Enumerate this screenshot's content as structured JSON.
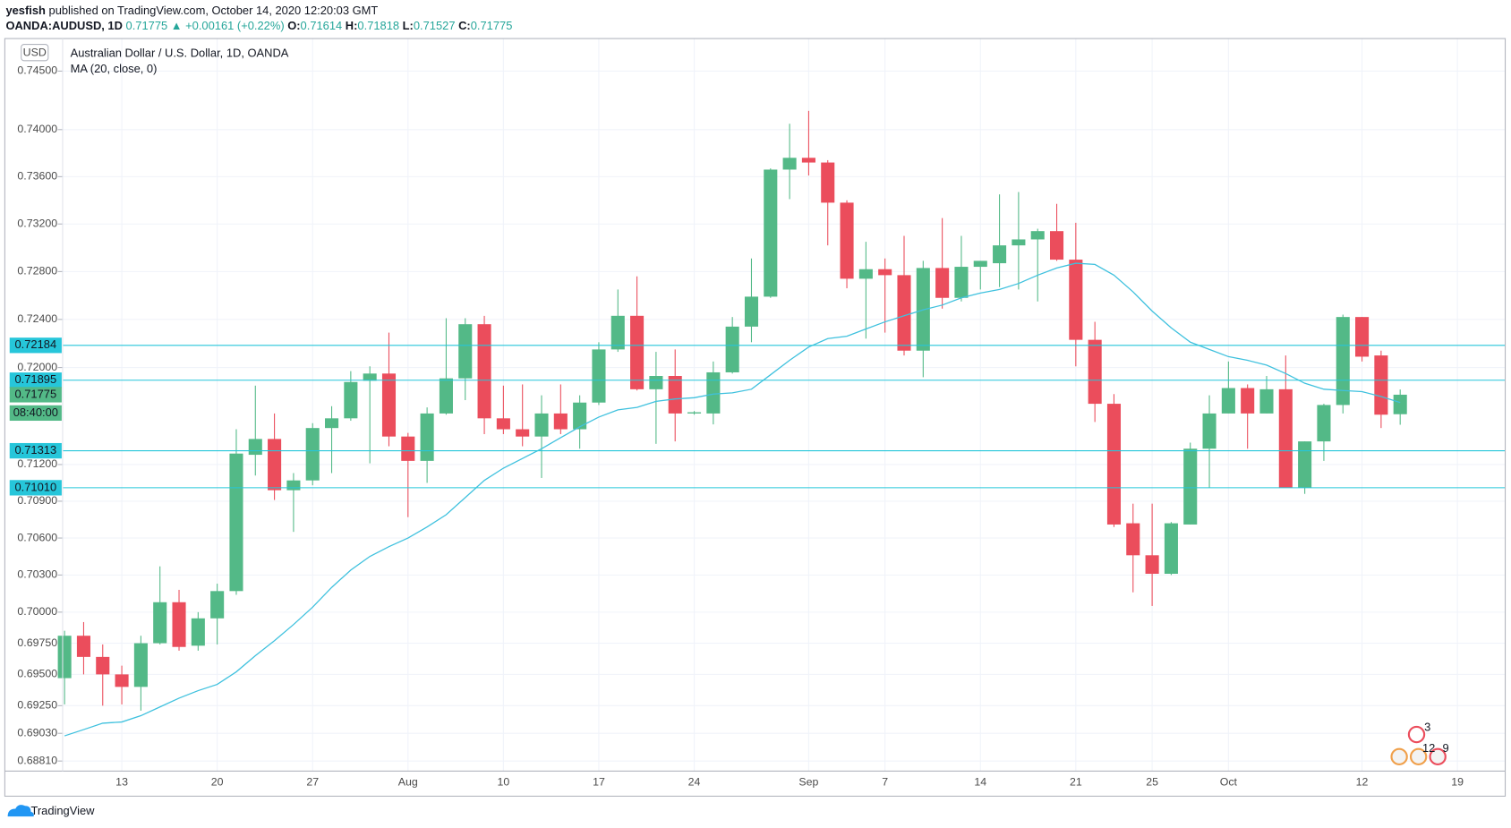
{
  "header": {
    "author": "yesfish",
    "published": "published on TradingView.com, October 14, 2020 12:20:03 GMT",
    "symbol": "OANDA:AUDUSD, 1D",
    "change": "▲ +0.00161 (+0.22%)",
    "ohlc_labels": [
      "O:",
      "H:",
      "L:",
      "C:"
    ]
  },
  "chart_data": {
    "type": "candlestick",
    "title": "Australian Dollar / U.S. Dollar, 1D, OANDA",
    "currency": "USD",
    "categories": [
      null,
      null,
      null,
      "13",
      null,
      null,
      null,
      null,
      "20",
      null,
      null,
      null,
      null,
      "27",
      null,
      null,
      null,
      null,
      "Aug",
      null,
      null,
      null,
      null,
      "10",
      null,
      null,
      null,
      null,
      "17",
      null,
      null,
      null,
      null,
      "24",
      null,
      null,
      null,
      null,
      null,
      "Sep",
      null,
      null,
      null,
      "7",
      null,
      null,
      null,
      null,
      "14",
      null,
      null,
      null,
      null,
      "21",
      null,
      null,
      null,
      "25",
      null,
      null,
      null,
      "Oct",
      null,
      null,
      null,
      null,
      null,
      null,
      "12",
      null,
      null,
      null,
      null,
      "19"
    ],
    "open": [
      0.6947,
      0.6981,
      0.6964,
      0.695,
      0.694,
      0.6975,
      0.7008,
      0.6973,
      0.6995,
      0.7017,
      0.7128,
      0.7141,
      0.7099,
      0.7107,
      0.715,
      0.7158,
      0.7189,
      0.7195,
      0.7143,
      0.7123,
      0.7162,
      0.7191,
      0.7236,
      0.7158,
      0.7149,
      0.7143,
      0.7162,
      0.7149,
      0.7171,
      0.7215,
      0.7243,
      0.7182,
      0.7193,
      0.7162,
      0.7162,
      0.7196,
      0.7234,
      0.7259,
      0.7366,
      0.7376,
      0.7372,
      0.7338,
      0.7274,
      0.7282,
      0.7277,
      0.7214,
      0.7283,
      0.7258,
      0.7284,
      0.7287,
      0.7302,
      0.7307,
      0.7314,
      0.729,
      0.7223,
      0.717,
      0.7072,
      0.7046,
      0.7031,
      0.7071,
      0.7133,
      0.7162,
      0.7183,
      0.7162,
      0.7182,
      0.7101,
      0.7139,
      0.7169,
      0.7242,
      0.721,
      0.71614,
      null,
      null,
      null
    ],
    "high": [
      0.6985,
      0.6992,
      0.6974,
      0.6957,
      0.6981,
      0.7037,
      0.7018,
      0.7,
      0.7023,
      0.7149,
      0.7185,
      0.7162,
      0.7113,
      0.7154,
      0.7168,
      0.7197,
      0.7201,
      0.7229,
      0.7146,
      0.7167,
      0.7241,
      0.7241,
      0.7243,
      0.7185,
      0.7186,
      0.7177,
      0.7186,
      0.7177,
      0.7221,
      0.7265,
      0.7276,
      0.7213,
      0.7215,
      0.7164,
      0.7205,
      0.7242,
      0.7291,
      0.7367,
      0.7405,
      0.7416,
      0.7374,
      0.734,
      0.7305,
      0.7291,
      0.731,
      0.7289,
      0.7325,
      0.731,
      0.7289,
      0.7345,
      0.7347,
      0.7316,
      0.7337,
      0.7321,
      0.7238,
      0.7178,
      0.7088,
      0.7088,
      0.7073,
      0.7138,
      0.7177,
      0.7205,
      0.7186,
      0.7193,
      0.721,
      0.7139,
      0.717,
      0.7244,
      0.7242,
      0.7214,
      0.71818,
      null,
      null,
      null
    ],
    "low": [
      0.6926,
      0.695,
      0.6925,
      0.6926,
      0.6921,
      0.6974,
      0.6969,
      0.6969,
      0.6974,
      0.7014,
      0.7111,
      0.7091,
      0.7065,
      0.7103,
      0.7113,
      0.7156,
      0.7121,
      0.7135,
      0.7077,
      0.7105,
      0.7161,
      0.7173,
      0.7145,
      0.7145,
      0.7135,
      0.7109,
      0.7145,
      0.7133,
      0.7169,
      0.7213,
      0.7181,
      0.7137,
      0.7139,
      0.7161,
      0.7153,
      0.7195,
      0.7221,
      0.7258,
      0.7341,
      0.7361,
      0.7302,
      0.7266,
      0.7224,
      0.7229,
      0.721,
      0.7192,
      0.7249,
      0.7255,
      0.7265,
      0.7267,
      0.7265,
      0.7255,
      0.7289,
      0.7201,
      0.7155,
      0.7069,
      0.7016,
      0.7005,
      0.703,
      0.7071,
      0.7101,
      0.7162,
      0.7133,
      0.7162,
      0.7101,
      0.7096,
      0.7123,
      0.7162,
      0.7205,
      0.715,
      0.71527,
      null,
      null,
      null
    ],
    "close": [
      0.6981,
      0.6964,
      0.695,
      0.694,
      0.6975,
      0.7008,
      0.6972,
      0.6995,
      0.7017,
      0.7129,
      0.7141,
      0.7099,
      0.7107,
      0.715,
      0.7158,
      0.7188,
      0.7195,
      0.7143,
      0.7123,
      0.7162,
      0.7191,
      0.7236,
      0.7158,
      0.7149,
      0.7143,
      0.7162,
      0.7149,
      0.7171,
      0.7215,
      0.7243,
      0.7182,
      0.7193,
      0.7162,
      0.7163,
      0.7196,
      0.7234,
      0.7259,
      0.7366,
      0.7376,
      0.7372,
      0.7338,
      0.7274,
      0.7282,
      0.7277,
      0.7214,
      0.7283,
      0.7258,
      0.7284,
      0.7289,
      0.7302,
      0.7307,
      0.7314,
      0.729,
      0.7223,
      0.717,
      0.7071,
      0.7046,
      0.7031,
      0.7072,
      0.7133,
      0.7162,
      0.7183,
      0.7162,
      0.7182,
      0.7101,
      0.7139,
      0.7169,
      0.7242,
      0.7209,
      0.7161,
      0.71775,
      null,
      null,
      null
    ],
    "up_color": "#53b987",
    "down_color": "#eb4d5c",
    "series": [
      {
        "name": "MA (20, close, 0)",
        "color": "#3fc1de",
        "values": [
          0.6901,
          0.6906,
          0.6911,
          0.6912,
          0.6917,
          0.6924,
          0.6931,
          0.6937,
          0.6942,
          0.6952,
          0.6965,
          0.6977,
          0.699,
          0.7004,
          0.702,
          0.7034,
          0.7045,
          0.7053,
          0.706,
          0.7069,
          0.7079,
          0.7093,
          0.7107,
          0.7117,
          0.7125,
          0.7133,
          0.7142,
          0.7151,
          0.7159,
          0.7165,
          0.7167,
          0.7172,
          0.7174,
          0.7175,
          0.7178,
          0.7179,
          0.7182,
          0.7194,
          0.7206,
          0.7217,
          0.7224,
          0.7226,
          0.7232,
          0.7238,
          0.7243,
          0.7248,
          0.7252,
          0.7258,
          0.7262,
          0.7265,
          0.727,
          0.7277,
          0.7283,
          0.7287,
          0.7286,
          0.7277,
          0.7263,
          0.7247,
          0.7233,
          0.7221,
          0.7215,
          0.7209,
          0.7206,
          0.7202,
          0.7195,
          0.7187,
          0.7182,
          0.7181,
          0.718,
          0.7176,
          0.7171,
          null,
          null,
          null
        ]
      }
    ],
    "log_scale": true,
    "grid": true,
    "ylim": [
      0.6873,
      0.7478
    ],
    "yticks": [
      {
        "value": 0.745,
        "label": "0.74500"
      },
      {
        "value": 0.74,
        "label": "0.74000"
      },
      {
        "value": 0.736,
        "label": "0.73600"
      },
      {
        "value": 0.732,
        "label": "0.73200"
      },
      {
        "value": 0.728,
        "label": "0.72800"
      },
      {
        "value": 0.724,
        "label": "0.72400"
      },
      {
        "value": 0.72,
        "label": "0.72000"
      },
      {
        "value": 0.712,
        "label": "0.71200"
      },
      {
        "value": 0.709,
        "label": "0.70900"
      },
      {
        "value": 0.706,
        "label": "0.70600"
      },
      {
        "value": 0.703,
        "label": "0.70300"
      },
      {
        "value": 0.7,
        "label": "0.70000"
      },
      {
        "value": 0.6975,
        "label": "0.69750"
      },
      {
        "value": 0.695,
        "label": "0.69500"
      },
      {
        "value": 0.6925,
        "label": "0.69250"
      },
      {
        "value": 0.6903,
        "label": "0.69030"
      },
      {
        "value": 0.6881,
        "label": "0.68810"
      }
    ],
    "price_lines": [
      0.72184,
      0.71895,
      0.71313,
      {
        "value": 0.7101,
        "label": "0.71010"
      }
    ],
    "price_line_color": "#26c6da",
    "countdown": "08:40:00",
    "events": [
      3,
      12,
      9
    ]
  },
  "footer": {
    "brand": "TradingView"
  }
}
